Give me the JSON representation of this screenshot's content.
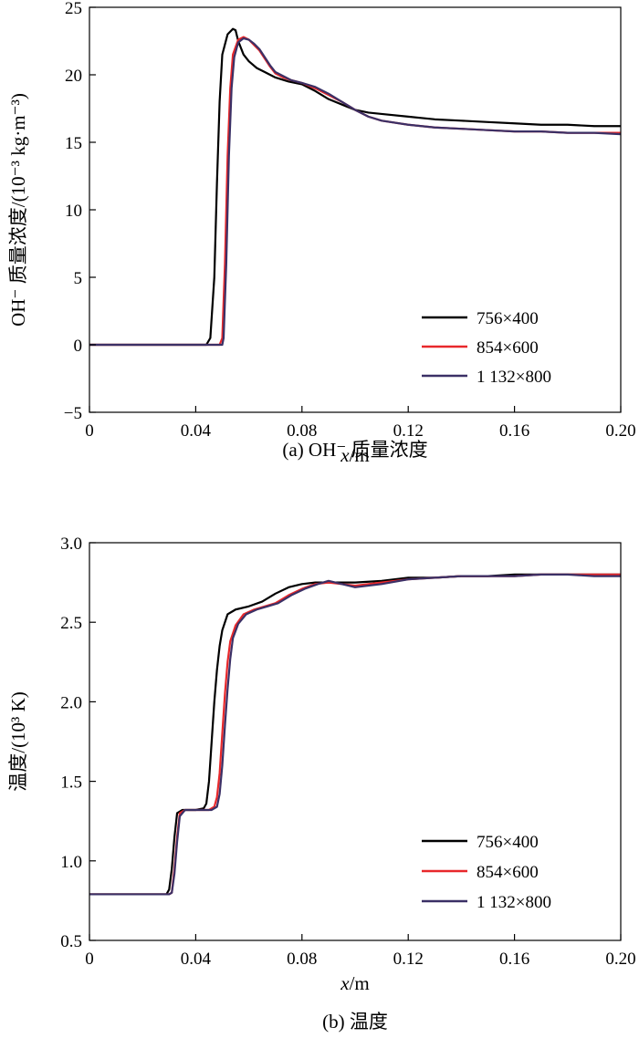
{
  "chart_data": [
    {
      "type": "line",
      "caption": "(a) OH⁻ 质量浓度",
      "xlabel_var": "x",
      "xlabel_unit": "/m",
      "ylabel": "OH⁻ 质量浓度/(10⁻³ kg·m⁻³)",
      "xlim": [
        0,
        0.2
      ],
      "ylim": [
        -5,
        25
      ],
      "xticks": [
        0,
        0.04,
        0.08,
        0.12,
        0.16,
        0.2
      ],
      "xtick_labels": [
        "0",
        "0.04",
        "0.08",
        "0.12",
        "0.16",
        "0.20"
      ],
      "yticks": [
        -5,
        0,
        5,
        10,
        15,
        20,
        25
      ],
      "ytick_labels": [
        "−5",
        "0",
        "5",
        "10",
        "15",
        "20",
        "25"
      ],
      "legend_position": "bottom-right",
      "series": [
        {
          "name": "756×400",
          "color": "#000000",
          "points": [
            [
              0,
              0
            ],
            [
              0.044,
              0
            ],
            [
              0.0455,
              0.5
            ],
            [
              0.047,
              5
            ],
            [
              0.048,
              12
            ],
            [
              0.049,
              18
            ],
            [
              0.05,
              21.5
            ],
            [
              0.052,
              23
            ],
            [
              0.054,
              23.4
            ],
            [
              0.055,
              23.3
            ],
            [
              0.056,
              22.5
            ],
            [
              0.058,
              21.5
            ],
            [
              0.06,
              21
            ],
            [
              0.063,
              20.5
            ],
            [
              0.066,
              20.2
            ],
            [
              0.07,
              19.8
            ],
            [
              0.075,
              19.5
            ],
            [
              0.08,
              19.3
            ],
            [
              0.085,
              18.8
            ],
            [
              0.09,
              18.2
            ],
            [
              0.095,
              17.8
            ],
            [
              0.1,
              17.4
            ],
            [
              0.105,
              17.2
            ],
            [
              0.11,
              17.1
            ],
            [
              0.12,
              16.9
            ],
            [
              0.13,
              16.7
            ],
            [
              0.14,
              16.6
            ],
            [
              0.15,
              16.5
            ],
            [
              0.16,
              16.4
            ],
            [
              0.17,
              16.3
            ],
            [
              0.18,
              16.3
            ],
            [
              0.19,
              16.2
            ],
            [
              0.2,
              16.2
            ]
          ]
        },
        {
          "name": "854×600",
          "color": "#e8282b",
          "points": [
            [
              0,
              0
            ],
            [
              0.049,
              0
            ],
            [
              0.05,
              0.5
            ],
            [
              0.051,
              6
            ],
            [
              0.052,
              14
            ],
            [
              0.053,
              19
            ],
            [
              0.054,
              21.5
            ],
            [
              0.056,
              22.6
            ],
            [
              0.058,
              22.8
            ],
            [
              0.06,
              22.6
            ],
            [
              0.062,
              22.2
            ],
            [
              0.064,
              21.8
            ],
            [
              0.066,
              21.2
            ],
            [
              0.068,
              20.6
            ],
            [
              0.07,
              20.1
            ],
            [
              0.073,
              19.8
            ],
            [
              0.076,
              19.6
            ],
            [
              0.08,
              19.4
            ],
            [
              0.085,
              19.0
            ],
            [
              0.09,
              18.5
            ],
            [
              0.095,
              18.0
            ],
            [
              0.1,
              17.4
            ],
            [
              0.105,
              16.9
            ],
            [
              0.11,
              16.6
            ],
            [
              0.12,
              16.3
            ],
            [
              0.13,
              16.1
            ],
            [
              0.14,
              16.0
            ],
            [
              0.15,
              15.9
            ],
            [
              0.16,
              15.8
            ],
            [
              0.17,
              15.8
            ],
            [
              0.18,
              15.7
            ],
            [
              0.19,
              15.7
            ],
            [
              0.2,
              15.7
            ]
          ]
        },
        {
          "name": "1 132×800",
          "color": "#3b3066",
          "points": [
            [
              0,
              0
            ],
            [
              0.05,
              0
            ],
            [
              0.0505,
              0.5
            ],
            [
              0.0515,
              6
            ],
            [
              0.0525,
              14
            ],
            [
              0.0535,
              19
            ],
            [
              0.0545,
              21.3
            ],
            [
              0.056,
              22.4
            ],
            [
              0.058,
              22.7
            ],
            [
              0.06,
              22.6
            ],
            [
              0.062,
              22.3
            ],
            [
              0.064,
              21.9
            ],
            [
              0.066,
              21.3
            ],
            [
              0.068,
              20.7
            ],
            [
              0.07,
              20.2
            ],
            [
              0.073,
              19.9
            ],
            [
              0.076,
              19.6
            ],
            [
              0.08,
              19.4
            ],
            [
              0.085,
              19.1
            ],
            [
              0.09,
              18.6
            ],
            [
              0.095,
              18.0
            ],
            [
              0.1,
              17.4
            ],
            [
              0.105,
              16.9
            ],
            [
              0.11,
              16.6
            ],
            [
              0.12,
              16.3
            ],
            [
              0.13,
              16.1
            ],
            [
              0.14,
              16.0
            ],
            [
              0.15,
              15.9
            ],
            [
              0.16,
              15.8
            ],
            [
              0.17,
              15.8
            ],
            [
              0.18,
              15.7
            ],
            [
              0.19,
              15.7
            ],
            [
              0.2,
              15.6
            ]
          ]
        }
      ]
    },
    {
      "type": "line",
      "caption": "(b) 温度",
      "xlabel_var": "x",
      "xlabel_unit": "/m",
      "ylabel": "温度/(10³ K)",
      "xlim": [
        0,
        0.2
      ],
      "ylim": [
        0.5,
        3.0
      ],
      "xticks": [
        0,
        0.04,
        0.08,
        0.12,
        0.16,
        0.2
      ],
      "xtick_labels": [
        "0",
        "0.04",
        "0.08",
        "0.12",
        "0.16",
        "0.20"
      ],
      "yticks": [
        0.5,
        1.0,
        1.5,
        2.0,
        2.5,
        3.0
      ],
      "ytick_labels": [
        "0.5",
        "1.0",
        "1.5",
        "2.0",
        "2.5",
        "3.0"
      ],
      "legend_position": "bottom-right",
      "series": [
        {
          "name": "756×400",
          "color": "#000000",
          "points": [
            [
              0,
              0.79
            ],
            [
              0.029,
              0.79
            ],
            [
              0.03,
              0.82
            ],
            [
              0.031,
              0.95
            ],
            [
              0.032,
              1.15
            ],
            [
              0.033,
              1.3
            ],
            [
              0.035,
              1.32
            ],
            [
              0.04,
              1.32
            ],
            [
              0.043,
              1.33
            ],
            [
              0.044,
              1.36
            ],
            [
              0.045,
              1.5
            ],
            [
              0.046,
              1.75
            ],
            [
              0.047,
              2.0
            ],
            [
              0.048,
              2.2
            ],
            [
              0.049,
              2.35
            ],
            [
              0.05,
              2.45
            ],
            [
              0.052,
              2.55
            ],
            [
              0.055,
              2.58
            ],
            [
              0.06,
              2.6
            ],
            [
              0.065,
              2.63
            ],
            [
              0.07,
              2.68
            ],
            [
              0.075,
              2.72
            ],
            [
              0.08,
              2.74
            ],
            [
              0.085,
              2.75
            ],
            [
              0.09,
              2.75
            ],
            [
              0.1,
              2.75
            ],
            [
              0.11,
              2.76
            ],
            [
              0.12,
              2.78
            ],
            [
              0.13,
              2.78
            ],
            [
              0.14,
              2.79
            ],
            [
              0.15,
              2.79
            ],
            [
              0.16,
              2.8
            ],
            [
              0.17,
              2.8
            ],
            [
              0.18,
              2.8
            ],
            [
              0.19,
              2.8
            ],
            [
              0.2,
              2.8
            ]
          ]
        },
        {
          "name": "854×600",
          "color": "#e8282b",
          "points": [
            [
              0,
              0.79
            ],
            [
              0.03,
              0.79
            ],
            [
              0.031,
              0.8
            ],
            [
              0.032,
              0.95
            ],
            [
              0.033,
              1.15
            ],
            [
              0.034,
              1.3
            ],
            [
              0.036,
              1.32
            ],
            [
              0.045,
              1.32
            ],
            [
              0.047,
              1.34
            ],
            [
              0.048,
              1.4
            ],
            [
              0.049,
              1.55
            ],
            [
              0.05,
              1.8
            ],
            [
              0.051,
              2.05
            ],
            [
              0.052,
              2.25
            ],
            [
              0.053,
              2.38
            ],
            [
              0.055,
              2.48
            ],
            [
              0.058,
              2.55
            ],
            [
              0.062,
              2.58
            ],
            [
              0.066,
              2.6
            ],
            [
              0.07,
              2.62
            ],
            [
              0.075,
              2.67
            ],
            [
              0.08,
              2.71
            ],
            [
              0.085,
              2.74
            ],
            [
              0.09,
              2.75
            ],
            [
              0.095,
              2.74
            ],
            [
              0.1,
              2.73
            ],
            [
              0.11,
              2.75
            ],
            [
              0.12,
              2.77
            ],
            [
              0.13,
              2.78
            ],
            [
              0.14,
              2.79
            ],
            [
              0.15,
              2.79
            ],
            [
              0.16,
              2.79
            ],
            [
              0.17,
              2.8
            ],
            [
              0.18,
              2.8
            ],
            [
              0.19,
              2.8
            ],
            [
              0.2,
              2.8
            ]
          ]
        },
        {
          "name": "1 132×800",
          "color": "#3b3066",
          "points": [
            [
              0,
              0.79
            ],
            [
              0.03,
              0.79
            ],
            [
              0.031,
              0.8
            ],
            [
              0.032,
              0.92
            ],
            [
              0.033,
              1.12
            ],
            [
              0.034,
              1.28
            ],
            [
              0.036,
              1.32
            ],
            [
              0.046,
              1.32
            ],
            [
              0.048,
              1.34
            ],
            [
              0.049,
              1.42
            ],
            [
              0.05,
              1.6
            ],
            [
              0.051,
              1.85
            ],
            [
              0.052,
              2.08
            ],
            [
              0.053,
              2.27
            ],
            [
              0.054,
              2.4
            ],
            [
              0.056,
              2.49
            ],
            [
              0.059,
              2.55
            ],
            [
              0.063,
              2.58
            ],
            [
              0.067,
              2.6
            ],
            [
              0.071,
              2.62
            ],
            [
              0.076,
              2.67
            ],
            [
              0.081,
              2.71
            ],
            [
              0.086,
              2.74
            ],
            [
              0.09,
              2.76
            ],
            [
              0.095,
              2.74
            ],
            [
              0.1,
              2.72
            ],
            [
              0.11,
              2.74
            ],
            [
              0.12,
              2.77
            ],
            [
              0.13,
              2.78
            ],
            [
              0.14,
              2.79
            ],
            [
              0.15,
              2.79
            ],
            [
              0.16,
              2.79
            ],
            [
              0.17,
              2.8
            ],
            [
              0.18,
              2.8
            ],
            [
              0.19,
              2.79
            ],
            [
              0.2,
              2.79
            ]
          ]
        }
      ]
    }
  ]
}
